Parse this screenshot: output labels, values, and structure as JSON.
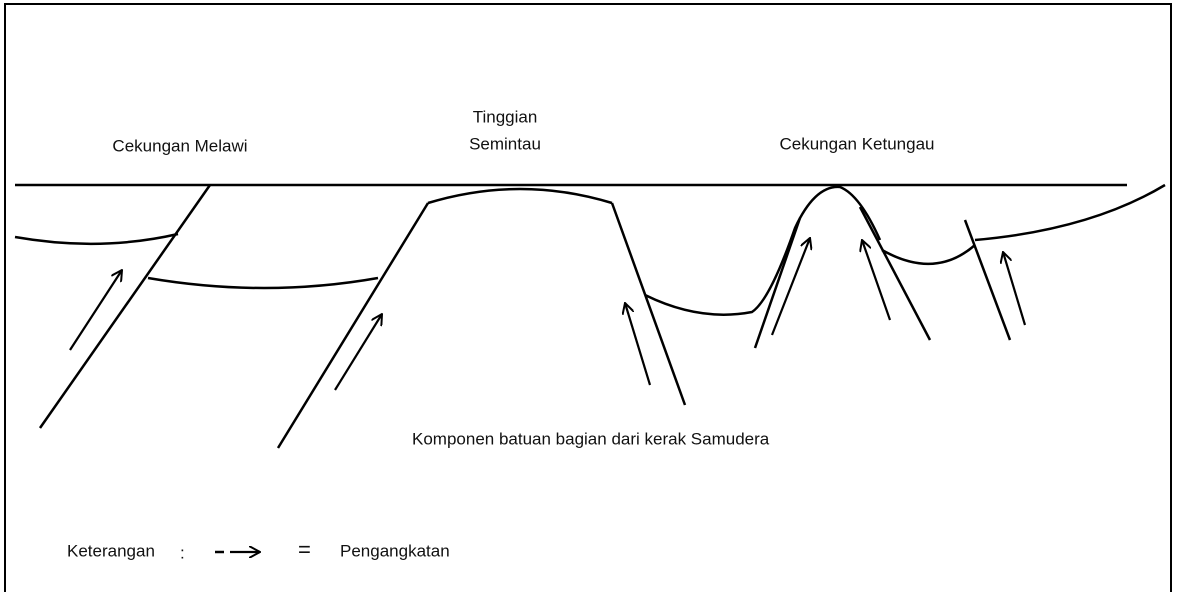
{
  "labels": {
    "left_basin": "Cekungan Melawi",
    "high_line1": "Tinggian",
    "high_line2": "Semintau",
    "right_basin": "Cekungan Ketungau",
    "crust_note": "Komponen batuan bagian dari kerak Samudera"
  },
  "legend": {
    "title": "Keterangan",
    "colon": ":",
    "equals": "=",
    "meaning": "Pengangkatan"
  }
}
